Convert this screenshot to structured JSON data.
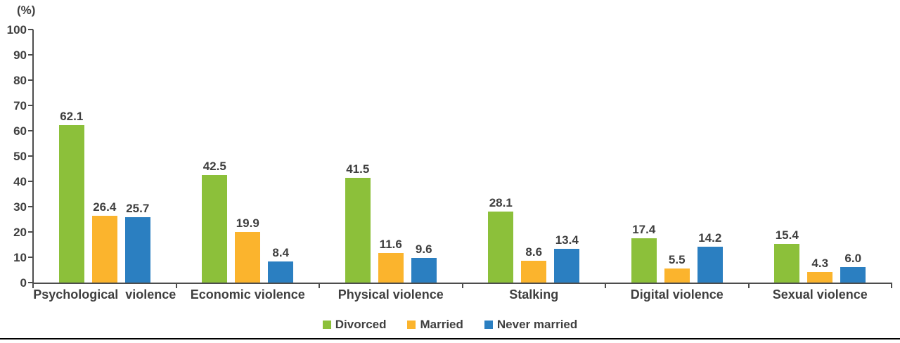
{
  "chart_data": {
    "type": "bar",
    "unit_label": "(%)",
    "categories": [
      "Psychological  violence",
      "Economic violence",
      "Physical violence",
      "Stalking",
      "Digital violence",
      "Sexual violence"
    ],
    "series": [
      {
        "name": "Divorced",
        "color": "#8CC03A",
        "values": [
          62.1,
          42.5,
          41.5,
          28.1,
          17.4,
          15.4
        ]
      },
      {
        "name": "Married",
        "color": "#FBB42D",
        "values": [
          26.4,
          19.9,
          11.6,
          8.6,
          5.5,
          4.3
        ]
      },
      {
        "name": "Never married",
        "color": "#2B7FC1",
        "values": [
          25.7,
          8.4,
          9.6,
          13.4,
          14.2,
          6.0
        ]
      }
    ],
    "ylim": [
      0,
      100
    ],
    "ytick_step": 10,
    "grid": false,
    "legend_position": "bottom",
    "value_label_decimals": 1
  },
  "colors": {
    "text": "#3F3F3F",
    "axis": "#4D4D4D",
    "bottom_rule": "#000000"
  }
}
